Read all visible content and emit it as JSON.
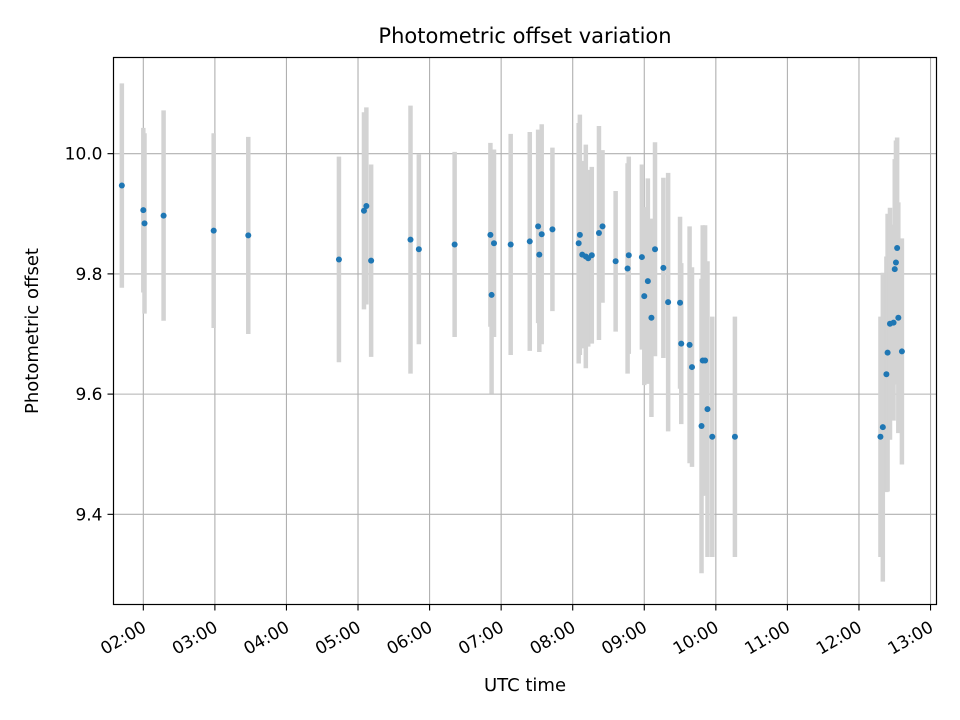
{
  "chart_data": {
    "type": "scatter",
    "title": "Photometric offset variation",
    "xlabel": "UTC time",
    "ylabel": "Photometric offset",
    "xlim": [
      "01:35",
      "13:05"
    ],
    "ylim": [
      9.25,
      10.16
    ],
    "x_ticks": [
      "02:00",
      "03:00",
      "04:00",
      "05:00",
      "06:00",
      "07:00",
      "08:00",
      "09:00",
      "10:00",
      "11:00",
      "12:00",
      "13:00"
    ],
    "y_ticks": [
      9.4,
      9.6,
      9.8,
      10.0
    ],
    "grid": true,
    "error_bar_color": "#d3d3d3",
    "marker_color": "#1f77b4",
    "series": [
      {
        "x": [
          "01:42",
          "02:00",
          "02:01",
          "02:17",
          "02:59",
          "03:28",
          "04:44",
          "05:05",
          "05:07",
          "05:11",
          "05:44",
          "05:51",
          "06:21",
          "06:51",
          "06:52",
          "06:54",
          "07:08",
          "07:24",
          "07:31",
          "07:32",
          "07:34",
          "07:43",
          "08:05",
          "08:06",
          "08:08",
          "08:11",
          "08:13",
          "08:16",
          "08:22",
          "08:25",
          "08:36",
          "08:46",
          "08:47",
          "08:58",
          "09:00",
          "09:03",
          "09:06",
          "09:09",
          "09:16",
          "09:20",
          "09:30",
          "09:31",
          "09:38",
          "09:40",
          "09:48",
          "09:49",
          "09:51",
          "09:53",
          "09:57",
          "10:16",
          "12:18",
          "12:20",
          "12:23",
          "12:24",
          "12:26",
          "12:29",
          "12:30",
          "12:31",
          "12:32",
          "12:33",
          "12:36"
        ],
        "y": [
          9.947,
          9.906,
          9.884,
          9.897,
          9.872,
          9.864,
          9.824,
          9.905,
          9.913,
          9.822,
          9.857,
          9.841,
          9.849,
          9.865,
          9.765,
          9.851,
          9.849,
          9.854,
          9.879,
          9.832,
          9.866,
          9.874,
          9.851,
          9.865,
          9.832,
          9.829,
          9.826,
          9.831,
          9.868,
          9.879,
          9.821,
          9.809,
          9.831,
          9.828,
          9.763,
          9.788,
          9.727,
          9.841,
          9.81,
          9.753,
          9.752,
          9.684,
          9.682,
          9.645,
          9.547,
          9.656,
          9.656,
          9.575,
          9.529,
          9.529,
          9.529,
          9.545,
          9.633,
          9.669,
          9.717,
          9.719,
          9.808,
          9.819,
          9.843,
          9.727,
          9.671
        ],
        "yerr": [
          0.17,
          0.137,
          0.15,
          0.175,
          0.162,
          0.164,
          0.171,
          0.164,
          0.164,
          0.16,
          0.223,
          0.158,
          0.154,
          0.153,
          0.164,
          0.156,
          0.184,
          0.182,
          0.161,
          0.162,
          0.183,
          0.136,
          0.2,
          0.2,
          0.156,
          0.186,
          0.147,
          0.147,
          0.178,
          0.127,
          0.117,
          0.175,
          0.164,
          0.154,
          0.148,
          0.171,
          0.165,
          0.178,
          0.15,
          0.215,
          0.143,
          0.134,
          0.197,
          0.166,
          0.245,
          0.225,
          0.225,
          0.246,
          0.2,
          0.2,
          0.2,
          0.257,
          0.196,
          0.231,
          0.193,
          0.163,
          0.183,
          0.203,
          0.184,
          0.192,
          0.188
        ]
      }
    ]
  }
}
